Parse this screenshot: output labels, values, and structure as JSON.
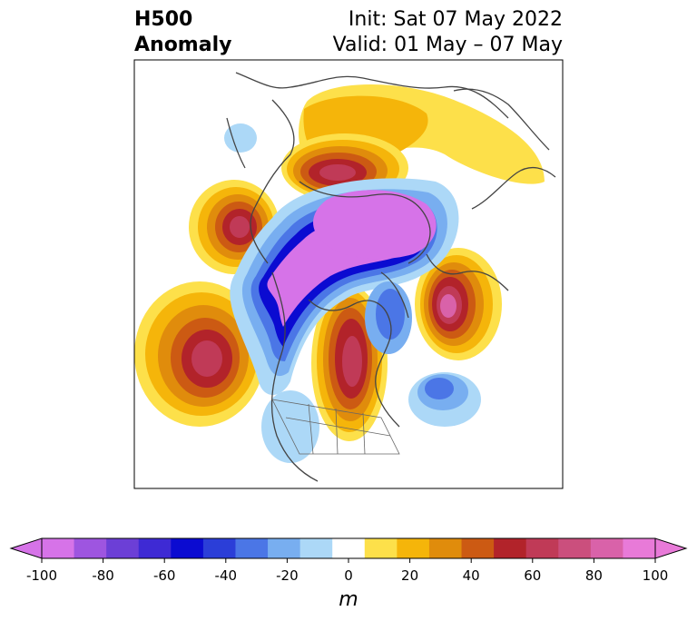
{
  "title": {
    "left_line1": "H500",
    "left_line2": "Anomaly",
    "right_line1": "Init: Sat 07 May 2022",
    "right_line2": "Valid: 01 May – 07 May"
  },
  "colorbar": {
    "unit": "m",
    "ticks": [
      "-100",
      "-80",
      "-60",
      "-40",
      "-20",
      "0",
      "20",
      "40",
      "60",
      "80",
      "100"
    ],
    "tick_values": [
      -100,
      -80,
      -60,
      -40,
      -20,
      0,
      20,
      40,
      60,
      80,
      100
    ],
    "range": [
      -100,
      100
    ],
    "extend": "both",
    "colors": [
      "#d673e8",
      "#9e55e0",
      "#6c3fd6",
      "#3e2ad4",
      "#0b0bd1",
      "#2b3ed8",
      "#4b76e6",
      "#78aef0",
      "#acd8f7",
      "#ffffff",
      "#fde04a",
      "#f5b50a",
      "#e08c0c",
      "#cc5a13",
      "#b2232a",
      "#c03a57",
      "#cb4f7d",
      "#d962a9",
      "#e87ad8"
    ],
    "under_color": "#d673e8",
    "over_color": "#e87ad8"
  },
  "map": {
    "projection": "north-polar-stereographic",
    "variable": "500 hPa geopotential height anomaly"
  }
}
